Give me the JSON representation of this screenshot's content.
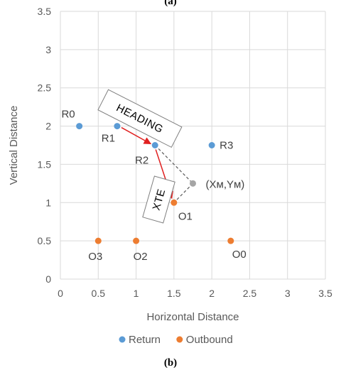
{
  "captions": {
    "top": "(a)",
    "bottom": "(b)"
  },
  "chart_data": {
    "type": "scatter",
    "xlabel": "Horizontal Distance",
    "ylabel": "Vertical Distance",
    "xlim": [
      0,
      3.5
    ],
    "ylim": [
      0,
      3.5
    ],
    "xticks": [
      "0",
      "0.5",
      "1",
      "1.5",
      "2",
      "2.5",
      "3",
      "3.5"
    ],
    "yticks": [
      "0",
      "0.5",
      "1",
      "1.5",
      "2",
      "2.5",
      "3",
      "3.5"
    ],
    "grid": true,
    "legend_position": "bottom",
    "series": [
      {
        "name": "Return",
        "color": "#5b9bd5",
        "points": [
          {
            "x": 0.25,
            "y": 2.0,
            "label": "R0"
          },
          {
            "x": 0.75,
            "y": 2.0,
            "label": "R1"
          },
          {
            "x": 1.25,
            "y": 1.75,
            "label": "R2"
          },
          {
            "x": 2.0,
            "y": 1.75,
            "label": "R3"
          }
        ]
      },
      {
        "name": "Outbound",
        "color": "#ed7d31",
        "points": [
          {
            "x": 2.25,
            "y": 0.5,
            "label": "O0"
          },
          {
            "x": 1.5,
            "y": 1.0,
            "label": "O1"
          },
          {
            "x": 1.0,
            "y": 0.5,
            "label": "O2"
          },
          {
            "x": 0.5,
            "y": 0.5,
            "label": "O3"
          }
        ]
      }
    ],
    "extra_points": [
      {
        "x": 1.75,
        "y": 1.25,
        "label": "(Xм,Yм)",
        "color": "#a5a5a5"
      }
    ],
    "annotations": {
      "heading_text": "HEADING",
      "xte_text": "XTE",
      "arrow_color": "#e02020"
    }
  }
}
